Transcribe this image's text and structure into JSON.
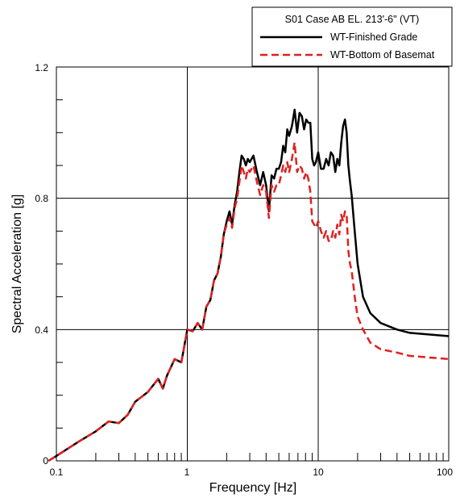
{
  "chart_data": {
    "type": "line",
    "xlabel": "Frequency [Hz]",
    "ylabel": "Spectral Acceleration [g]",
    "x_scale": "log",
    "xlim": [
      0.05,
      100
    ],
    "ylim": [
      0,
      1.2
    ],
    "x_tick_labels": [
      "0.1",
      "1",
      "10",
      "100"
    ],
    "y_tick_labels": [
      "0",
      "0.4",
      "0.8",
      "1.2"
    ],
    "grid": true,
    "legend": {
      "title": "S01 Case AB EL. 213'-6\" (VT)",
      "placement": "top-right"
    },
    "series": [
      {
        "name": "WT-Finished Grade",
        "color": "#000000",
        "dash": "solid",
        "x": [
          0.05,
          0.1,
          0.15,
          0.2,
          0.25,
          0.3,
          0.35,
          0.4,
          0.5,
          0.6,
          0.65,
          0.7,
          0.8,
          0.9,
          1.0,
          1.1,
          1.2,
          1.3,
          1.4,
          1.5,
          1.6,
          1.7,
          1.8,
          1.9,
          2.0,
          2.1,
          2.2,
          2.3,
          2.4,
          2.5,
          2.6,
          2.7,
          2.8,
          2.9,
          3.0,
          3.2,
          3.4,
          3.6,
          3.8,
          4.0,
          4.2,
          4.4,
          4.6,
          4.8,
          5.0,
          5.2,
          5.4,
          5.6,
          5.8,
          6.0,
          6.3,
          6.6,
          6.9,
          7.2,
          7.5,
          7.8,
          8.1,
          8.4,
          8.7,
          9.0,
          9.3,
          9.6,
          10,
          10.5,
          11,
          11.5,
          12,
          12.5,
          13,
          13.5,
          14,
          14.5,
          15,
          15.5,
          16,
          16.5,
          17,
          17.5,
          18,
          19,
          20,
          22,
          25,
          30,
          40,
          50,
          70,
          100
        ],
        "y": [
          0.0,
          0.015,
          0.06,
          0.09,
          0.12,
          0.115,
          0.14,
          0.18,
          0.21,
          0.25,
          0.22,
          0.26,
          0.31,
          0.3,
          0.4,
          0.395,
          0.42,
          0.4,
          0.47,
          0.49,
          0.55,
          0.57,
          0.62,
          0.69,
          0.73,
          0.76,
          0.72,
          0.78,
          0.82,
          0.88,
          0.93,
          0.92,
          0.9,
          0.92,
          0.91,
          0.93,
          0.88,
          0.84,
          0.88,
          0.84,
          0.76,
          0.87,
          0.86,
          0.89,
          0.89,
          0.91,
          0.96,
          0.94,
          1.01,
          0.99,
          1.02,
          1.07,
          1.0,
          1.06,
          1.05,
          1.01,
          1.04,
          1.03,
          1.03,
          0.92,
          0.9,
          0.91,
          0.94,
          0.89,
          0.89,
          0.92,
          0.9,
          0.94,
          0.93,
          0.88,
          0.92,
          0.9,
          0.97,
          1.02,
          1.04,
          1.0,
          0.9,
          0.85,
          0.81,
          0.7,
          0.6,
          0.5,
          0.45,
          0.42,
          0.4,
          0.39,
          0.385,
          0.38
        ]
      },
      {
        "name": "WT-Bottom of Basemat",
        "color": "#e02020",
        "dash": "dashed",
        "x": [
          0.05,
          0.1,
          0.15,
          0.2,
          0.25,
          0.3,
          0.35,
          0.4,
          0.5,
          0.6,
          0.65,
          0.7,
          0.8,
          0.9,
          1.0,
          1.1,
          1.2,
          1.3,
          1.4,
          1.5,
          1.6,
          1.7,
          1.8,
          1.9,
          2.0,
          2.1,
          2.2,
          2.3,
          2.4,
          2.5,
          2.6,
          2.7,
          2.8,
          2.9,
          3.0,
          3.2,
          3.4,
          3.6,
          3.8,
          4.0,
          4.2,
          4.4,
          4.6,
          4.8,
          5.0,
          5.2,
          5.4,
          5.6,
          5.8,
          6.0,
          6.3,
          6.6,
          6.9,
          7.2,
          7.5,
          7.8,
          8.1,
          8.4,
          8.7,
          9.0,
          9.3,
          9.6,
          10,
          10.5,
          11,
          11.5,
          12,
          12.5,
          13,
          13.5,
          14,
          14.5,
          15,
          15.5,
          16,
          16.5,
          17,
          17.5,
          18,
          19,
          20,
          22,
          25,
          30,
          40,
          50,
          70,
          100
        ],
        "y": [
          0.0,
          0.015,
          0.06,
          0.09,
          0.12,
          0.115,
          0.14,
          0.18,
          0.21,
          0.25,
          0.22,
          0.26,
          0.31,
          0.3,
          0.4,
          0.395,
          0.42,
          0.4,
          0.47,
          0.49,
          0.55,
          0.57,
          0.62,
          0.69,
          0.72,
          0.74,
          0.71,
          0.77,
          0.8,
          0.85,
          0.9,
          0.88,
          0.86,
          0.89,
          0.88,
          0.9,
          0.85,
          0.81,
          0.84,
          0.82,
          0.74,
          0.84,
          0.82,
          0.84,
          0.84,
          0.87,
          0.9,
          0.88,
          0.91,
          0.88,
          0.92,
          0.97,
          0.88,
          0.9,
          0.89,
          0.86,
          0.88,
          0.86,
          0.82,
          0.73,
          0.72,
          0.71,
          0.73,
          0.7,
          0.68,
          0.7,
          0.67,
          0.67,
          0.7,
          0.68,
          0.72,
          0.69,
          0.75,
          0.73,
          0.76,
          0.75,
          0.64,
          0.6,
          0.58,
          0.5,
          0.44,
          0.4,
          0.36,
          0.34,
          0.33,
          0.32,
          0.315,
          0.31
        ]
      }
    ]
  }
}
